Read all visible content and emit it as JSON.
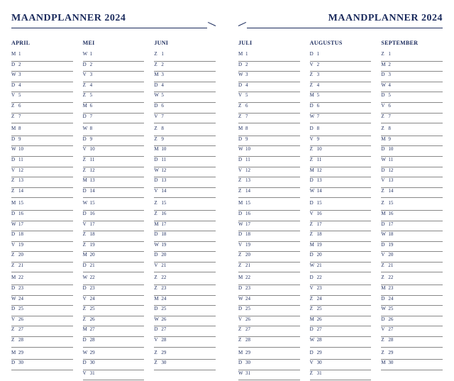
{
  "header_left": "MAANDPLANNER 2024",
  "header_right": "MAANDPLANNER 2024",
  "colors": {
    "text": "#1a2a5c",
    "rule": "#888888",
    "background": "#ffffff"
  },
  "pages": [
    {
      "months": [
        {
          "name": "APRIL",
          "days": [
            {
              "d": "M",
              "n": 1,
              "b": false
            },
            {
              "d": "D",
              "n": 2,
              "b": false
            },
            {
              "d": "W",
              "n": 3,
              "b": false
            },
            {
              "d": "D",
              "n": 4,
              "b": false
            },
            {
              "d": "V",
              "n": 5,
              "b": false
            },
            {
              "d": "Z",
              "n": 6,
              "b": false
            },
            {
              "d": "Z",
              "n": 7,
              "b": false
            },
            {
              "d": "M",
              "n": 8,
              "b": true
            },
            {
              "d": "D",
              "n": 9,
              "b": false
            },
            {
              "d": "W",
              "n": 10,
              "b": false
            },
            {
              "d": "D",
              "n": 11,
              "b": false
            },
            {
              "d": "V",
              "n": 12,
              "b": false
            },
            {
              "d": "Z",
              "n": 13,
              "b": false
            },
            {
              "d": "Z",
              "n": 14,
              "b": false
            },
            {
              "d": "M",
              "n": 15,
              "b": true
            },
            {
              "d": "D",
              "n": 16,
              "b": false
            },
            {
              "d": "W",
              "n": 17,
              "b": false
            },
            {
              "d": "D",
              "n": 18,
              "b": false
            },
            {
              "d": "V",
              "n": 19,
              "b": false
            },
            {
              "d": "Z",
              "n": 20,
              "b": false
            },
            {
              "d": "Z",
              "n": 21,
              "b": false
            },
            {
              "d": "M",
              "n": 22,
              "b": true
            },
            {
              "d": "D",
              "n": 23,
              "b": false
            },
            {
              "d": "W",
              "n": 24,
              "b": false
            },
            {
              "d": "D",
              "n": 25,
              "b": false
            },
            {
              "d": "V",
              "n": 26,
              "b": false
            },
            {
              "d": "Z",
              "n": 27,
              "b": false
            },
            {
              "d": "Z",
              "n": 28,
              "b": false
            },
            {
              "d": "M",
              "n": 29,
              "b": true
            },
            {
              "d": "D",
              "n": 30,
              "b": false
            }
          ]
        },
        {
          "name": "MEI",
          "days": [
            {
              "d": "W",
              "n": 1,
              "b": false
            },
            {
              "d": "D",
              "n": 2,
              "b": false
            },
            {
              "d": "V",
              "n": 3,
              "b": false
            },
            {
              "d": "Z",
              "n": 4,
              "b": false
            },
            {
              "d": "Z",
              "n": 5,
              "b": false
            },
            {
              "d": "M",
              "n": 6,
              "b": false
            },
            {
              "d": "D",
              "n": 7,
              "b": false
            },
            {
              "d": "W",
              "n": 8,
              "b": true
            },
            {
              "d": "D",
              "n": 9,
              "b": false
            },
            {
              "d": "V",
              "n": 10,
              "b": false
            },
            {
              "d": "Z",
              "n": 11,
              "b": false
            },
            {
              "d": "Z",
              "n": 12,
              "b": false
            },
            {
              "d": "M",
              "n": 13,
              "b": false
            },
            {
              "d": "D",
              "n": 14,
              "b": false
            },
            {
              "d": "W",
              "n": 15,
              "b": true
            },
            {
              "d": "D",
              "n": 16,
              "b": false
            },
            {
              "d": "V",
              "n": 17,
              "b": false
            },
            {
              "d": "Z",
              "n": 18,
              "b": false
            },
            {
              "d": "Z",
              "n": 19,
              "b": false
            },
            {
              "d": "M",
              "n": 20,
              "b": false
            },
            {
              "d": "D",
              "n": 21,
              "b": false
            },
            {
              "d": "W",
              "n": 22,
              "b": true
            },
            {
              "d": "D",
              "n": 23,
              "b": false
            },
            {
              "d": "V",
              "n": 24,
              "b": false
            },
            {
              "d": "Z",
              "n": 25,
              "b": false
            },
            {
              "d": "Z",
              "n": 26,
              "b": false
            },
            {
              "d": "M",
              "n": 27,
              "b": false
            },
            {
              "d": "D",
              "n": 28,
              "b": false
            },
            {
              "d": "W",
              "n": 29,
              "b": true
            },
            {
              "d": "D",
              "n": 30,
              "b": false
            },
            {
              "d": "V",
              "n": 31,
              "b": false
            }
          ]
        },
        {
          "name": "JUNI",
          "days": [
            {
              "d": "Z",
              "n": 1,
              "b": false
            },
            {
              "d": "Z",
              "n": 2,
              "b": false
            },
            {
              "d": "M",
              "n": 3,
              "b": false
            },
            {
              "d": "D",
              "n": 4,
              "b": false
            },
            {
              "d": "W",
              "n": 5,
              "b": false
            },
            {
              "d": "D",
              "n": 6,
              "b": false
            },
            {
              "d": "V",
              "n": 7,
              "b": false
            },
            {
              "d": "Z",
              "n": 8,
              "b": true
            },
            {
              "d": "Z",
              "n": 9,
              "b": false
            },
            {
              "d": "M",
              "n": 10,
              "b": false
            },
            {
              "d": "D",
              "n": 11,
              "b": false
            },
            {
              "d": "W",
              "n": 12,
              "b": false
            },
            {
              "d": "D",
              "n": 13,
              "b": false
            },
            {
              "d": "V",
              "n": 14,
              "b": false
            },
            {
              "d": "Z",
              "n": 15,
              "b": true
            },
            {
              "d": "Z",
              "n": 16,
              "b": false
            },
            {
              "d": "M",
              "n": 17,
              "b": false
            },
            {
              "d": "D",
              "n": 18,
              "b": false
            },
            {
              "d": "W",
              "n": 19,
              "b": false
            },
            {
              "d": "D",
              "n": 20,
              "b": false
            },
            {
              "d": "V",
              "n": 21,
              "b": false
            },
            {
              "d": "Z",
              "n": 22,
              "b": true
            },
            {
              "d": "Z",
              "n": 23,
              "b": false
            },
            {
              "d": "M",
              "n": 24,
              "b": false
            },
            {
              "d": "D",
              "n": 25,
              "b": false
            },
            {
              "d": "W",
              "n": 26,
              "b": false
            },
            {
              "d": "D",
              "n": 27,
              "b": false
            },
            {
              "d": "V",
              "n": 28,
              "b": false
            },
            {
              "d": "Z",
              "n": 29,
              "b": true
            },
            {
              "d": "Z",
              "n": 30,
              "b": false
            }
          ]
        }
      ]
    },
    {
      "months": [
        {
          "name": "JULI",
          "days": [
            {
              "d": "M",
              "n": 1,
              "b": false
            },
            {
              "d": "D",
              "n": 2,
              "b": false
            },
            {
              "d": "W",
              "n": 3,
              "b": false
            },
            {
              "d": "D",
              "n": 4,
              "b": false
            },
            {
              "d": "V",
              "n": 5,
              "b": false
            },
            {
              "d": "Z",
              "n": 6,
              "b": false
            },
            {
              "d": "Z",
              "n": 7,
              "b": false
            },
            {
              "d": "M",
              "n": 8,
              "b": true
            },
            {
              "d": "D",
              "n": 9,
              "b": false
            },
            {
              "d": "W",
              "n": 10,
              "b": false
            },
            {
              "d": "D",
              "n": 11,
              "b": false
            },
            {
              "d": "V",
              "n": 12,
              "b": false
            },
            {
              "d": "Z",
              "n": 13,
              "b": false
            },
            {
              "d": "Z",
              "n": 14,
              "b": false
            },
            {
              "d": "M",
              "n": 15,
              "b": true
            },
            {
              "d": "D",
              "n": 16,
              "b": false
            },
            {
              "d": "W",
              "n": 17,
              "b": false
            },
            {
              "d": "D",
              "n": 18,
              "b": false
            },
            {
              "d": "V",
              "n": 19,
              "b": false
            },
            {
              "d": "Z",
              "n": 20,
              "b": false
            },
            {
              "d": "Z",
              "n": 21,
              "b": false
            },
            {
              "d": "M",
              "n": 22,
              "b": true
            },
            {
              "d": "D",
              "n": 23,
              "b": false
            },
            {
              "d": "W",
              "n": 24,
              "b": false
            },
            {
              "d": "D",
              "n": 25,
              "b": false
            },
            {
              "d": "V",
              "n": 26,
              "b": false
            },
            {
              "d": "Z",
              "n": 27,
              "b": false
            },
            {
              "d": "Z",
              "n": 28,
              "b": false
            },
            {
              "d": "M",
              "n": 29,
              "b": true
            },
            {
              "d": "D",
              "n": 30,
              "b": false
            },
            {
              "d": "W",
              "n": 31,
              "b": false
            }
          ]
        },
        {
          "name": "AUGUSTUS",
          "days": [
            {
              "d": "D",
              "n": 1,
              "b": false
            },
            {
              "d": "V",
              "n": 2,
              "b": false
            },
            {
              "d": "Z",
              "n": 3,
              "b": false
            },
            {
              "d": "Z",
              "n": 4,
              "b": false
            },
            {
              "d": "M",
              "n": 5,
              "b": false
            },
            {
              "d": "D",
              "n": 6,
              "b": false
            },
            {
              "d": "W",
              "n": 7,
              "b": false
            },
            {
              "d": "D",
              "n": 8,
              "b": true
            },
            {
              "d": "V",
              "n": 9,
              "b": false
            },
            {
              "d": "Z",
              "n": 10,
              "b": false
            },
            {
              "d": "Z",
              "n": 11,
              "b": false
            },
            {
              "d": "M",
              "n": 12,
              "b": false
            },
            {
              "d": "D",
              "n": 13,
              "b": false
            },
            {
              "d": "W",
              "n": 14,
              "b": false
            },
            {
              "d": "D",
              "n": 15,
              "b": true
            },
            {
              "d": "V",
              "n": 16,
              "b": false
            },
            {
              "d": "Z",
              "n": 17,
              "b": false
            },
            {
              "d": "Z",
              "n": 18,
              "b": false
            },
            {
              "d": "M",
              "n": 19,
              "b": false
            },
            {
              "d": "D",
              "n": 20,
              "b": false
            },
            {
              "d": "W",
              "n": 21,
              "b": false
            },
            {
              "d": "D",
              "n": 22,
              "b": true
            },
            {
              "d": "V",
              "n": 23,
              "b": false
            },
            {
              "d": "Z",
              "n": 24,
              "b": false
            },
            {
              "d": "Z",
              "n": 25,
              "b": false
            },
            {
              "d": "M",
              "n": 26,
              "b": false
            },
            {
              "d": "D",
              "n": 27,
              "b": false
            },
            {
              "d": "W",
              "n": 28,
              "b": false
            },
            {
              "d": "D",
              "n": 29,
              "b": true
            },
            {
              "d": "V",
              "n": 30,
              "b": false
            },
            {
              "d": "Z",
              "n": 31,
              "b": false
            }
          ]
        },
        {
          "name": "SEPTEMBER",
          "days": [
            {
              "d": "Z",
              "n": 1,
              "b": false
            },
            {
              "d": "M",
              "n": 2,
              "b": false
            },
            {
              "d": "D",
              "n": 3,
              "b": false
            },
            {
              "d": "W",
              "n": 4,
              "b": false
            },
            {
              "d": "D",
              "n": 5,
              "b": false
            },
            {
              "d": "V",
              "n": 6,
              "b": false
            },
            {
              "d": "Z",
              "n": 7,
              "b": false
            },
            {
              "d": "Z",
              "n": 8,
              "b": true
            },
            {
              "d": "M",
              "n": 9,
              "b": false
            },
            {
              "d": "D",
              "n": 10,
              "b": false
            },
            {
              "d": "W",
              "n": 11,
              "b": false
            },
            {
              "d": "D",
              "n": 12,
              "b": false
            },
            {
              "d": "V",
              "n": 13,
              "b": false
            },
            {
              "d": "Z",
              "n": 14,
              "b": false
            },
            {
              "d": "Z",
              "n": 15,
              "b": true
            },
            {
              "d": "M",
              "n": 16,
              "b": false
            },
            {
              "d": "D",
              "n": 17,
              "b": false
            },
            {
              "d": "W",
              "n": 18,
              "b": false
            },
            {
              "d": "D",
              "n": 19,
              "b": false
            },
            {
              "d": "V",
              "n": 20,
              "b": false
            },
            {
              "d": "Z",
              "n": 21,
              "b": false
            },
            {
              "d": "Z",
              "n": 22,
              "b": true
            },
            {
              "d": "M",
              "n": 23,
              "b": false
            },
            {
              "d": "D",
              "n": 24,
              "b": false
            },
            {
              "d": "W",
              "n": 25,
              "b": false
            },
            {
              "d": "D",
              "n": 26,
              "b": false
            },
            {
              "d": "V",
              "n": 27,
              "b": false
            },
            {
              "d": "Z",
              "n": 28,
              "b": false
            },
            {
              "d": "Z",
              "n": 29,
              "b": true
            },
            {
              "d": "M",
              "n": 30,
              "b": false
            }
          ]
        }
      ]
    }
  ]
}
